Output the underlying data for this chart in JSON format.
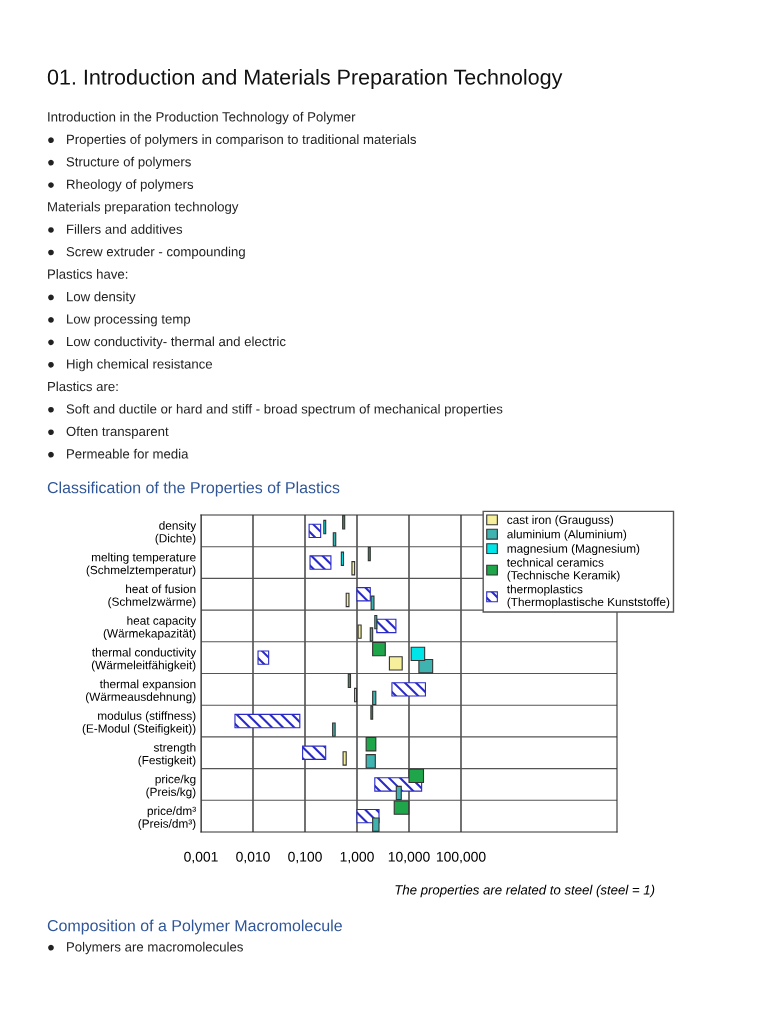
{
  "chart_data": {
    "type": "bar",
    "orientation": "horizontal",
    "title": "Classification of the Properties of Plastics",
    "categories": [
      "density\n(Dichte)",
      "melting temperature\n(Schmelztemperatur)",
      "heat of fusion\n(Schmelzwärme)",
      "heat capacity\n(Wärmekapazität)",
      "thermal conductivity\n(Wärmeleitfähigkeit)",
      "thermal expansion\n(Wärmeausdehnung)",
      "modulus (stiffness)\n(E-Modul (Steifigkeit))",
      "strength\n(Festigkeit)",
      "price/kg\n(Preis/kg)",
      "price/dm³\n(Preis/dm³)"
    ],
    "series": [
      {
        "name": "cast iron (Grauguss)",
        "color": "#f6f09c",
        "base": [
          null,
          0.8,
          0.62,
          1.05,
          4.2,
          0.9,
          null,
          0.54,
          null,
          null
        ],
        "values": [
          null,
          0.1,
          0.08,
          0.15,
          3.2,
          0.08,
          null,
          0.08,
          null,
          null
        ]
      },
      {
        "name": "aluminium (Aluminium)",
        "color": "#3fb3b0",
        "base": [
          0.35,
          null,
          1.87,
          1.8,
          15.5,
          2,
          0.34,
          1.5,
          5.7,
          2
        ],
        "values": [
          0.04,
          null,
          0.25,
          0.2,
          13,
          0.3,
          0.04,
          0.75,
          1.4,
          0.65
        ]
      },
      {
        "name": "magnesium (Magnesium)",
        "color": "#00e5e8",
        "base": [
          0.23,
          0.5,
          null,
          2.2,
          11,
          null,
          null,
          null,
          null,
          null
        ],
        "values": [
          0.02,
          0.05,
          null,
          0.2,
          9,
          null,
          null,
          null,
          null,
          null
        ]
      },
      {
        "name": "technical ceramics\n(Technische Keramik)",
        "color": "#1fa64a",
        "base": [
          0.53,
          1.65,
          null,
          null,
          2,
          0.68,
          1.85,
          1.5,
          10,
          5.2
        ],
        "values": [
          0.05,
          0.15,
          null,
          null,
          1.5,
          0.07,
          0.15,
          0.8,
          9,
          4.7
        ]
      },
      {
        "name": "thermoplastics\n(Thermoplastische Kunststoffe)",
        "color": "#2a2ac8",
        "base": [
          0.12,
          0.125,
          1.0,
          2.4,
          0.0125,
          4.7,
          0.0045,
          0.09,
          2.2,
          1.0
        ],
        "values": [
          0.08,
          0.19,
          0.8,
          3.2,
          0.0075,
          16,
          0.075,
          0.16,
          15.3,
          1.65
        ]
      }
    ],
    "log": "x",
    "xlim": [
      0.001,
      100000
    ],
    "xticks": [
      {
        "value": 0.001,
        "label": "0,001"
      },
      {
        "value": 0.01,
        "label": "0,010"
      },
      {
        "value": 0.1,
        "label": "0,100"
      },
      {
        "value": 1,
        "label": "1,000"
      },
      {
        "value": 10,
        "label": "10,000"
      },
      {
        "value": 100,
        "label": "100,000"
      }
    ],
    "grid": true,
    "legend": "top right",
    "annotations": [
      "01. Introduction and Materials Preparation Technology",
      "Introduction in the Production Technology of Polymer",
      "●   Properties of polymers in comparison to traditional materials",
      "●   Structure of polymers",
      "●   Rheology of polymers",
      "Materials preparation technology",
      "●   Fillers and additives",
      "●   Screw extruder - compounding",
      "Plastics have:",
      "●   Low density",
      "●   Low processing temp",
      "●   Low conductivity- thermal and electric",
      "●   High chemical resistance",
      "Plastics are:",
      "●   Soft and ductile or hard and stiff - broad spectrum of mechanical properties",
      "●   Often transparent",
      "●   Permeable for media",
      "The properties are related to steel (steel = 1)",
      "Composition of a Polymer Macromolecule",
      "●   Polymers are macromolecules"
    ]
  }
}
